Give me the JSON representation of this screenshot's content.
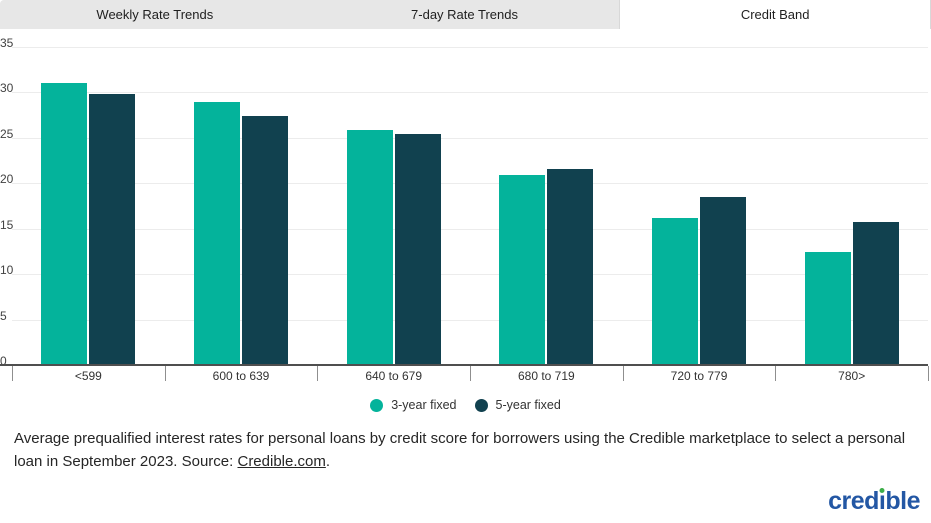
{
  "tabs": [
    {
      "label": "Weekly Rate Trends",
      "active": false
    },
    {
      "label": "7-day Rate Trends",
      "active": false
    },
    {
      "label": "Credit Band",
      "active": true
    }
  ],
  "chart_data": {
    "type": "bar",
    "categories": [
      "<599",
      "600 to 639",
      "640 to 679",
      "680 to 719",
      "720 to 779",
      "780>"
    ],
    "series": [
      {
        "name": "3-year fixed",
        "color": "#04b39b",
        "values": [
          31.2,
          29.1,
          26.0,
          21.0,
          16.3,
          12.6
        ]
      },
      {
        "name": "5-year fixed",
        "color": "#11414f",
        "values": [
          29.9,
          27.5,
          25.5,
          21.7,
          18.6,
          15.8
        ]
      }
    ],
    "title": "",
    "xlabel": "",
    "ylabel": "",
    "ylim": [
      0,
      35
    ],
    "yticks": [
      0,
      5,
      10,
      15,
      20,
      25,
      30,
      35
    ],
    "grid": true,
    "legend_position": "bottom"
  },
  "caption": {
    "before_link": "Average prequalified interest rates for personal loans by credit score for borrowers using the Credible marketplace to select a personal loan in September 2023. Source: ",
    "link": "Credible.com",
    "after_link": "."
  },
  "logo": {
    "text": "credible",
    "part1": "cred",
    "dotless_i": "ı",
    "part2": "ble",
    "blue": "#2357a4",
    "green": "#3dae49"
  },
  "colors": {
    "tab_background": "#e7e7e7",
    "active_tab_background": "#ffffff",
    "gridline": "#ececec",
    "axis_line": "#4f4f4f",
    "axis_text": "#424242"
  }
}
